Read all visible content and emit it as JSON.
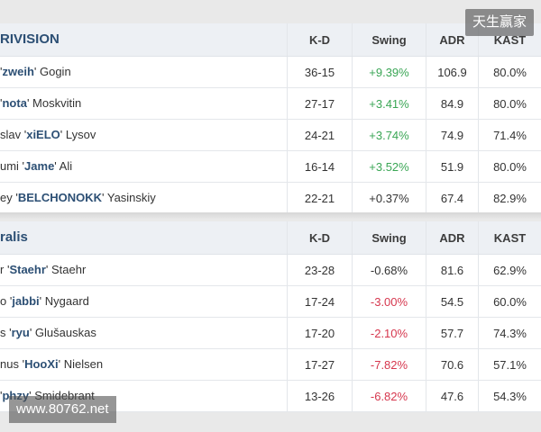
{
  "watermarks": {
    "top_right": "天生赢家",
    "bottom_left": "www.80762.net"
  },
  "columns": {
    "kd": "K-D",
    "swing": "Swing",
    "adr": "ADR",
    "kast": "KAST"
  },
  "colors": {
    "positive": "#3aa655",
    "negative": "#d6374e",
    "header_bg": "#edf0f4",
    "nick": "#2c4f74"
  },
  "teams": [
    {
      "name": "RIVISION",
      "players": [
        {
          "first": "'",
          "nick": "zweih",
          "last": "' Gogin",
          "kd": "36-15",
          "swing": "+9.39%",
          "swing_sign": "pos",
          "adr": "106.9",
          "kast": "80.0%"
        },
        {
          "first": "'",
          "nick": "nota",
          "last": "' Moskvitin",
          "kd": "27-17",
          "swing": "+3.41%",
          "swing_sign": "pos",
          "adr": "84.9",
          "kast": "80.0%"
        },
        {
          "first": "slav '",
          "nick": "xiELO",
          "last": "' Lysov",
          "kd": "24-21",
          "swing": "+3.74%",
          "swing_sign": "pos",
          "adr": "74.9",
          "kast": "71.4%"
        },
        {
          "first": "umi '",
          "nick": "Jame",
          "last": "' Ali",
          "kd": "16-14",
          "swing": "+3.52%",
          "swing_sign": "pos",
          "adr": "51.9",
          "kast": "80.0%"
        },
        {
          "first": "ey '",
          "nick": "BELCHONOKK",
          "last": "' Yasinskiy",
          "kd": "22-21",
          "swing": "+0.37%",
          "swing_sign": "neu",
          "adr": "67.4",
          "kast": "82.9%"
        }
      ]
    },
    {
      "name": "ralis",
      "players": [
        {
          "first": "r '",
          "nick": "Staehr",
          "last": "' Staehr",
          "kd": "23-28",
          "swing": "-0.68%",
          "swing_sign": "neu",
          "adr": "81.6",
          "kast": "62.9%"
        },
        {
          "first": "o '",
          "nick": "jabbi",
          "last": "' Nygaard",
          "kd": "17-24",
          "swing": "-3.00%",
          "swing_sign": "neg",
          "adr": "54.5",
          "kast": "60.0%"
        },
        {
          "first": "s '",
          "nick": "ryu",
          "last": "' Glušauskas",
          "kd": "17-20",
          "swing": "-2.10%",
          "swing_sign": "neg",
          "adr": "57.7",
          "kast": "74.3%"
        },
        {
          "first": "nus '",
          "nick": "HooXi",
          "last": "' Nielsen",
          "kd": "17-27",
          "swing": "-7.82%",
          "swing_sign": "neg",
          "adr": "70.6",
          "kast": "57.1%"
        },
        {
          "first": "'",
          "nick": "phzy",
          "last": "' Smidebrant",
          "kd": "13-26",
          "swing": "-6.82%",
          "swing_sign": "neg",
          "adr": "47.6",
          "kast": "54.3%"
        }
      ]
    }
  ]
}
